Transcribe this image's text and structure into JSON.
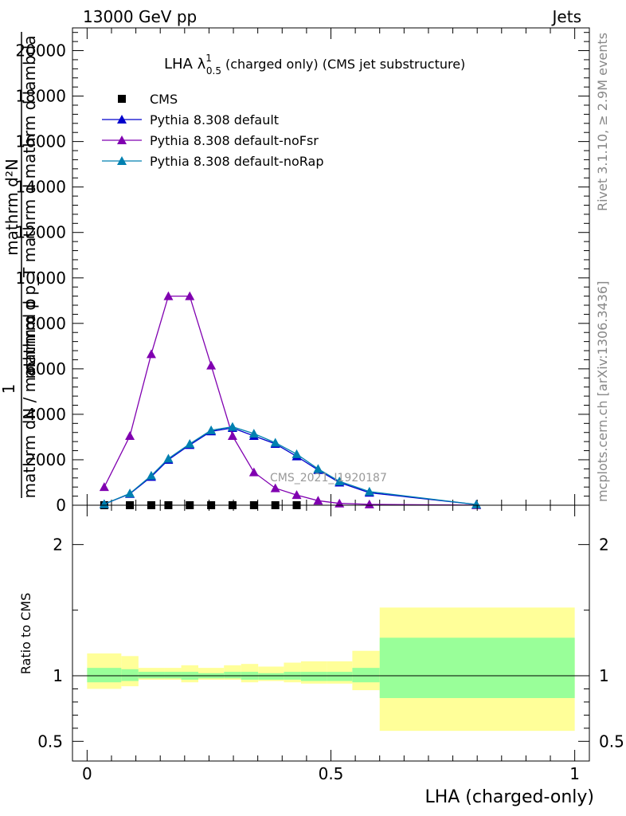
{
  "header": {
    "left": "13000 GeV pp",
    "right": "Jets"
  },
  "side_labels": {
    "rivet": "Rivet 3.1.10, ≥ 2.9M events",
    "mcplots": "mcplots.cern.ch [arXiv:1306.3436]"
  },
  "chart_data": [
    {
      "type": "line",
      "title_prefix": "LHA λ",
      "title_sup": "1",
      "title_sub": "0.5",
      "title_suffix": "(charged only) (CMS jet substructure)",
      "ylabel_num": "mathrm d²N",
      "ylabel_den": "mathrm d p_T mathrm d mathrm d lambda",
      "ylabel_prefix_num": "1",
      "ylabel_prefix_den": "mathrm dN / mathrm d p",
      "ylim": [
        0,
        21000
      ],
      "yticks": [
        0,
        2000,
        4000,
        6000,
        8000,
        10000,
        12000,
        14000,
        16000,
        18000,
        20000
      ],
      "xlim": [
        -0.03,
        1.03
      ],
      "watermark": "CMS_2021_I1920187",
      "legend_position": "top-left",
      "series": [
        {
          "name": "CMS",
          "color": "#000000",
          "marker": "square",
          "x": [
            0.0351,
            0.0877,
            0.1316,
            0.1667,
            0.2105,
            0.2544,
            0.2982,
            0.3421,
            0.386,
            0.4298
          ],
          "y": [
            0,
            0,
            0,
            0,
            0,
            0,
            0,
            0,
            0,
            0
          ]
        },
        {
          "name": "Pythia 8.308 default",
          "color": "#0000cc",
          "marker": "triangle",
          "x": [
            0.0351,
            0.0877,
            0.1316,
            0.1667,
            0.2105,
            0.2544,
            0.2982,
            0.3421,
            0.386,
            0.4298,
            0.4737,
            0.5175,
            0.5789,
            0.7982
          ],
          "y": [
            50,
            500,
            1250,
            2000,
            2650,
            3250,
            3400,
            3050,
            2700,
            2150,
            1550,
            1000,
            550,
            30
          ]
        },
        {
          "name": "Pythia 8.308 default-noFsr",
          "color": "#8000b0",
          "marker": "triangle",
          "x": [
            0.0351,
            0.0877,
            0.1316,
            0.1667,
            0.2105,
            0.2544,
            0.2982,
            0.3421,
            0.386,
            0.4298,
            0.4737,
            0.5175,
            0.5789,
            0.7982
          ],
          "y": [
            800,
            3050,
            6650,
            9200,
            9200,
            6150,
            3050,
            1450,
            750,
            450,
            200,
            80,
            40,
            5
          ]
        },
        {
          "name": "Pythia 8.308 default-noRap",
          "color": "#0080b0",
          "marker": "triangle",
          "x": [
            0.0351,
            0.0877,
            0.1316,
            0.1667,
            0.2105,
            0.2544,
            0.2982,
            0.3421,
            0.386,
            0.4298,
            0.4737,
            0.5175,
            0.5789,
            0.7982
          ],
          "y": [
            50,
            520,
            1300,
            2050,
            2700,
            3300,
            3450,
            3150,
            2750,
            2250,
            1600,
            1050,
            600,
            30
          ]
        }
      ]
    },
    {
      "type": "area",
      "xlabel": "LHA (charged-only)",
      "ylabel": "Ratio to CMS",
      "ylim": [
        0.35,
        2.3
      ],
      "xlim": [
        -0.03,
        1.03
      ],
      "yticks": [
        0.5,
        1,
        2
      ],
      "ytick_labels": [
        "0.5",
        "1",
        "2"
      ],
      "xticks": [
        0,
        0.5,
        1
      ],
      "xtick_labels": [
        "0",
        "0.5",
        "1"
      ],
      "reference_line": 1,
      "bands": {
        "bin_edges": [
          0.0,
          0.0702,
          0.1053,
          0.1579,
          0.193,
          0.2281,
          0.2807,
          0.3158,
          0.3509,
          0.4035,
          0.4386,
          0.4912,
          0.5439,
          0.6,
          1.0
        ],
        "inner": [
          [
            0.95,
            1.06
          ],
          [
            0.96,
            1.05
          ],
          [
            0.98,
            1.03
          ],
          [
            0.98,
            1.03
          ],
          [
            0.97,
            1.03
          ],
          [
            0.98,
            1.02
          ],
          [
            0.98,
            1.03
          ],
          [
            0.97,
            1.03
          ],
          [
            0.97,
            1.02
          ],
          [
            0.97,
            1.03
          ],
          [
            0.96,
            1.03
          ],
          [
            0.96,
            1.03
          ],
          [
            0.95,
            1.06
          ],
          [
            0.83,
            1.29
          ]
        ],
        "outer": [
          [
            0.9,
            1.17
          ],
          [
            0.92,
            1.15
          ],
          [
            0.97,
            1.06
          ],
          [
            0.97,
            1.06
          ],
          [
            0.95,
            1.08
          ],
          [
            0.97,
            1.06
          ],
          [
            0.97,
            1.08
          ],
          [
            0.95,
            1.09
          ],
          [
            0.96,
            1.07
          ],
          [
            0.95,
            1.1
          ],
          [
            0.94,
            1.11
          ],
          [
            0.94,
            1.11
          ],
          [
            0.89,
            1.19
          ],
          [
            0.58,
            1.52
          ]
        ],
        "inner_color": "#99ff99",
        "outer_color": "#ffff99"
      }
    }
  ]
}
